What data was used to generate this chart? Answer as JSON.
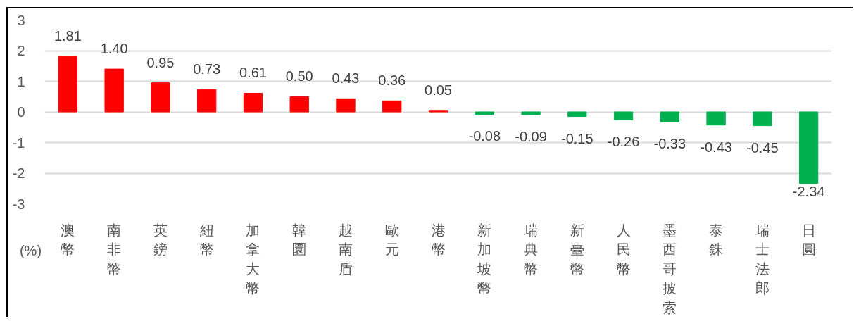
{
  "chart_data": {
    "type": "bar",
    "ylabel": "(%)",
    "categories": [
      "澳幣",
      "南非幣",
      "英鎊",
      "紐幣",
      "加拿大幣",
      "韓圜",
      "越南盾",
      "歐元",
      "港幣",
      "新加坡幣",
      "瑞典幣",
      "新臺幣",
      "人民幣",
      "墨西哥披索",
      "泰銖",
      "瑞士法郎",
      "日圓"
    ],
    "values": [
      1.81,
      1.4,
      0.95,
      0.73,
      0.61,
      0.5,
      0.43,
      0.36,
      0.05,
      -0.08,
      -0.09,
      -0.15,
      -0.26,
      -0.33,
      -0.43,
      -0.45,
      -2.34
    ],
    "value_labels": [
      "1.81",
      "1.40",
      "0.95",
      "0.73",
      "0.61",
      "0.50",
      "0.43",
      "0.36",
      "0.05",
      "-0.08",
      "-0.09",
      "-0.15",
      "-0.26",
      "-0.33",
      "-0.43",
      "-0.45",
      "-2.34"
    ],
    "colors": [
      "#ff0000",
      "#ff0000",
      "#ff0000",
      "#ff0000",
      "#ff0000",
      "#ff0000",
      "#ff0000",
      "#ff0000",
      "#ff0000",
      "#00b050",
      "#00b050",
      "#00b050",
      "#00b050",
      "#00b050",
      "#00b050",
      "#00b050",
      "#00b050"
    ],
    "ylim": [
      -3,
      3
    ],
    "yticks": [
      -3,
      -2,
      -1,
      0,
      1,
      2,
      3
    ],
    "grid": "y"
  }
}
